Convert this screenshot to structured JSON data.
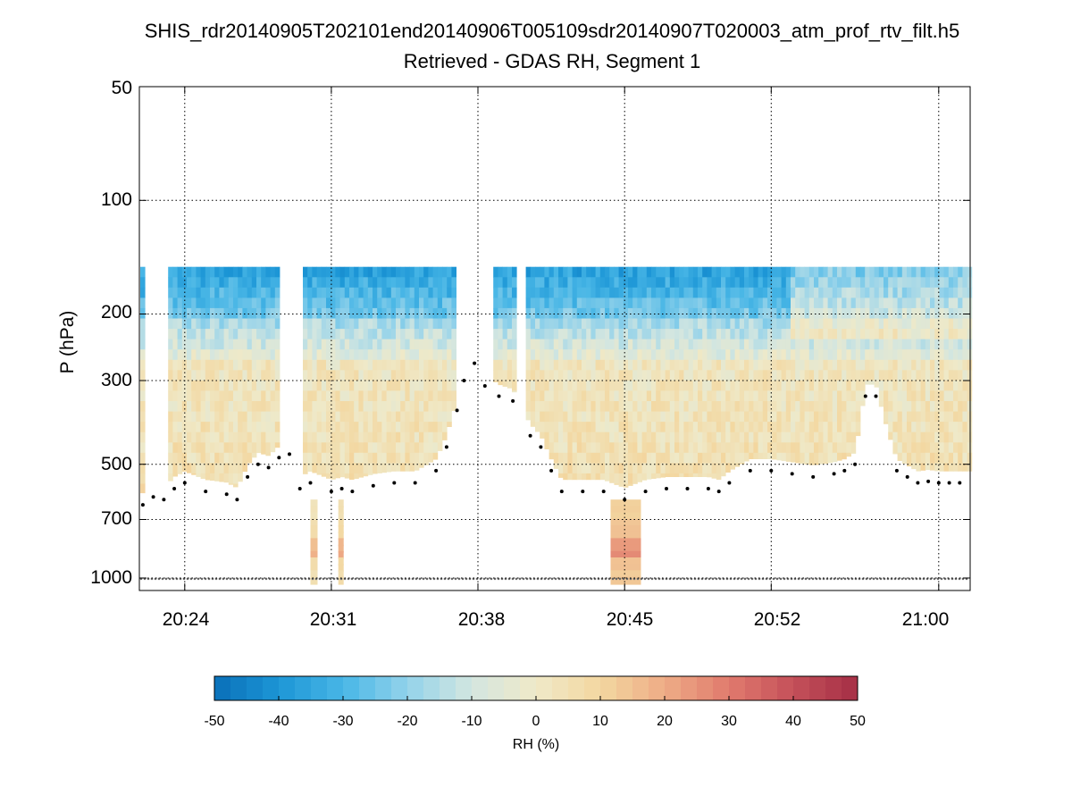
{
  "chart_data": {
    "type": "heatmap",
    "title": "SHIS_rdr20140905T202101end20140906T005109sdr20140907T020003_atm_prof_rtv_filt.h5",
    "subtitle": "Retrieved - GDAS RH, Segment 1",
    "ylabel": "P (hPa)",
    "y_scale": "log",
    "y_reversed": true,
    "ylim": [
      1050,
      50
    ],
    "y_ticks": [
      "50",
      "100",
      "200",
      "300",
      "500",
      "700",
      "1000"
    ],
    "x_ticks": [
      "20:24",
      "20:31",
      "20:38",
      "20:45",
      "20:52",
      "21:00"
    ],
    "xlim": [
      "20:21:50",
      "21:01:30"
    ],
    "grid": true,
    "colorbar": {
      "label": "RH (%)",
      "range": [
        -50,
        50
      ],
      "ticks": [
        "-50",
        "-40",
        "-30",
        "-20",
        "-10",
        "0",
        "10",
        "20",
        "30",
        "40",
        "50"
      ],
      "colormap": [
        "#0a6fb8",
        "#1c96d6",
        "#48b6e6",
        "#93d2ea",
        "#d3e6e0",
        "#efe9c8",
        "#f3d7a0",
        "#eeac86",
        "#e07a6d",
        "#c4505a",
        "#a52f45"
      ]
    },
    "data_gaps": [
      {
        "start": "20:22:05",
        "end": "20:23:15"
      },
      {
        "start": "20:28:30",
        "end": "20:29:40"
      },
      {
        "start": "20:36:55",
        "end": "20:38:40"
      },
      {
        "start": "20:39:50",
        "end": "20:40:20"
      }
    ],
    "cloud_top_pressure_hPa": {
      "x": [
        "20:22:00",
        "20:22:30",
        "20:23:00",
        "20:23:30",
        "20:24:00",
        "20:25:00",
        "20:26:00",
        "20:26:30",
        "20:27:00",
        "20:27:30",
        "20:28:00",
        "20:28:30",
        "20:29:00",
        "20:29:30",
        "20:30:00",
        "20:31:00",
        "20:31:30",
        "20:32:00",
        "20:33:00",
        "20:34:00",
        "20:35:00",
        "20:36:00",
        "20:36:30",
        "20:37:00",
        "20:37:20",
        "20:37:50",
        "20:38:20",
        "20:39:00",
        "20:39:40",
        "20:40:30",
        "20:41:00",
        "20:41:30",
        "20:42:00",
        "20:43:00",
        "20:44:00",
        "20:45:00",
        "20:46:00",
        "20:47:00",
        "20:48:00",
        "20:49:00",
        "20:49:30",
        "20:50:00",
        "20:51:00",
        "20:52:00",
        "20:53:00",
        "20:54:00",
        "20:55:00",
        "20:55:30",
        "20:56:00",
        "20:56:30",
        "20:57:00",
        "20:58:00",
        "20:58:30",
        "20:59:00",
        "20:59:30",
        "21:00:00",
        "21:00:30",
        "21:01:00"
      ],
      "y": [
        640,
        610,
        620,
        580,
        560,
        590,
        600,
        620,
        540,
        500,
        510,
        480,
        470,
        580,
        560,
        590,
        580,
        590,
        570,
        560,
        560,
        520,
        450,
        360,
        300,
        270,
        310,
        330,
        340,
        420,
        450,
        520,
        590,
        590,
        590,
        620,
        590,
        580,
        580,
        580,
        590,
        560,
        520,
        520,
        530,
        540,
        530,
        520,
        500,
        330,
        330,
        520,
        540,
        560,
        555,
        560,
        560,
        560
      ]
    },
    "surface_pressure_hPa": 1005
  }
}
